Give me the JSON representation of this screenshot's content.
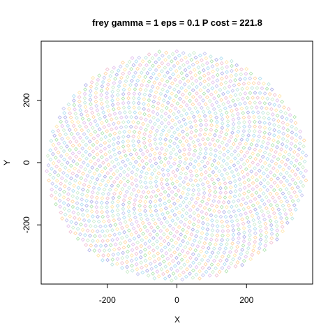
{
  "chart_data": {
    "type": "scatter",
    "title": "frey gamma = 1 eps = 0.1 P cost = 221.8",
    "xlabel": "X",
    "ylabel": "Y",
    "xlim": [
      -390,
      390
    ],
    "ylim": [
      -390,
      390
    ],
    "x_ticks": [
      -200,
      0,
      200
    ],
    "y_ticks": [
      -200,
      0,
      200
    ],
    "grid": false,
    "legend": "none",
    "marker": "open-diamond",
    "point_count": 1965,
    "point_cloud": {
      "center": [
        0,
        -10
      ],
      "radius_x": 375,
      "radius_y": 370
    },
    "colors": [
      "#b3e6b3",
      "#c9c9f2",
      "#ffe8b0",
      "#e6c4f0",
      "#b3e0f2",
      "#f2c4d6",
      "#cfeecf",
      "#b5b5ec",
      "#ffd7a8",
      "#c2e8e2"
    ]
  }
}
